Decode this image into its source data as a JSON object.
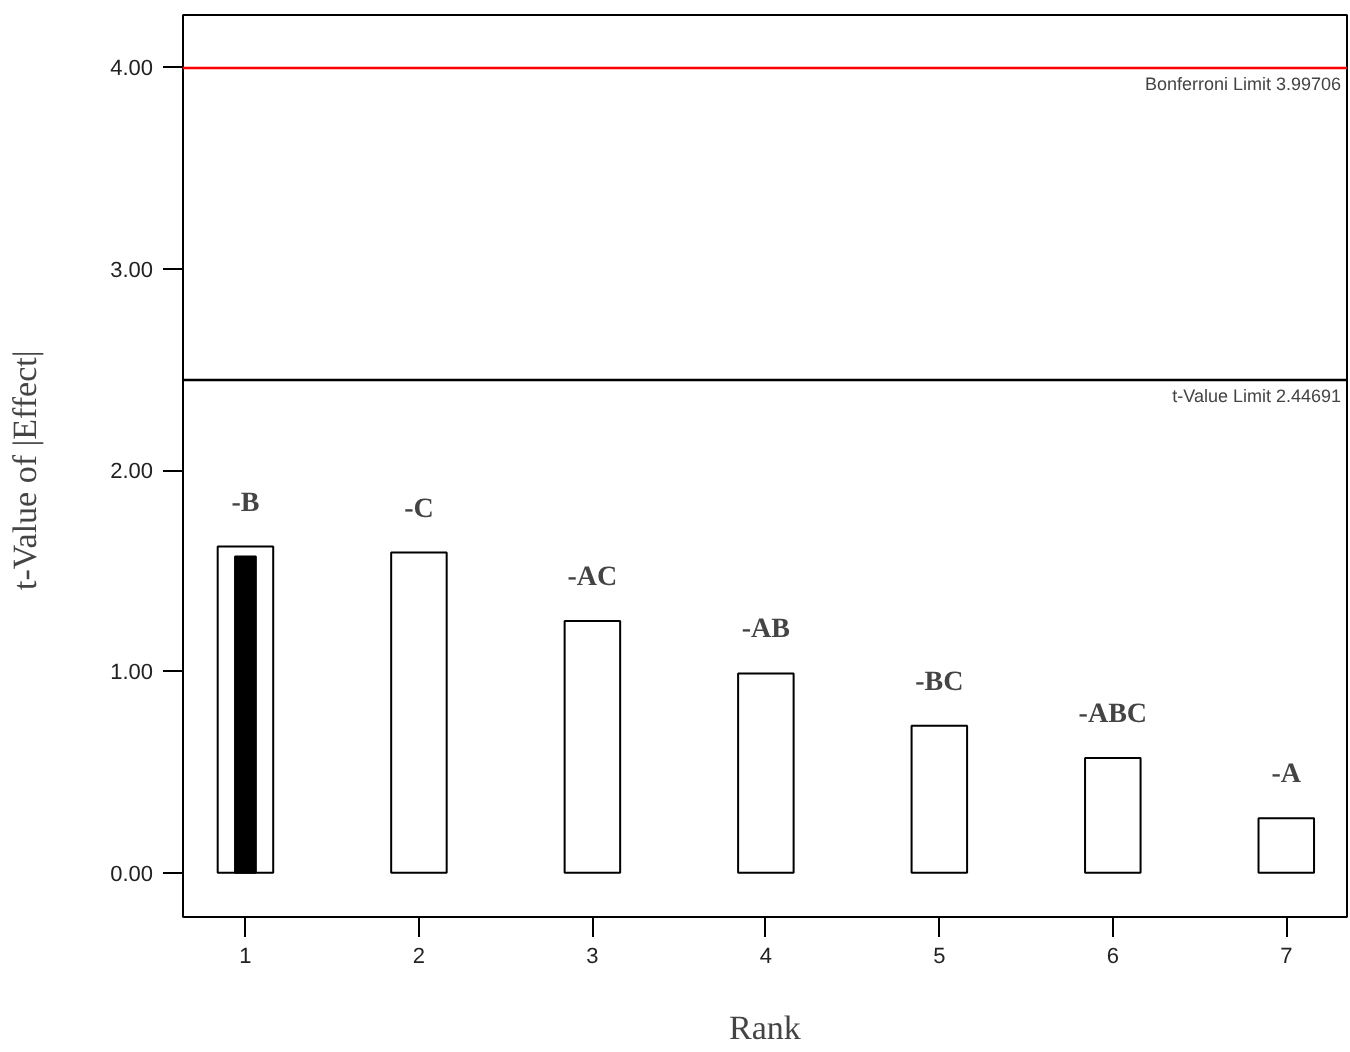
{
  "chart_data": {
    "type": "bar",
    "xlabel": "Rank",
    "ylabel": "t-Value of  |Effect|",
    "x": [
      1,
      2,
      3,
      4,
      5,
      6,
      7
    ],
    "series": [
      {
        "color": "#ffffff",
        "values": [
          1.62,
          1.59,
          1.25,
          0.99,
          0.73,
          0.57,
          0.27
        ],
        "value_labels": [
          "-B",
          "-C",
          "-AC",
          "-AB",
          "-BC",
          "-ABC",
          "-A"
        ]
      },
      {
        "color": "#000000",
        "values": [
          1.57,
          null,
          null,
          null,
          null,
          null,
          null
        ]
      }
    ],
    "xlim": [
      0.64,
      7.35
    ],
    "xticks": [
      1,
      2,
      3,
      4,
      5,
      6,
      7
    ],
    "ylim": [
      -0.22,
      4.26
    ],
    "yticks": [
      {
        "value": 0,
        "label": "0.00"
      },
      {
        "value": 1,
        "label": "1.00"
      },
      {
        "value": 2,
        "label": "2.00"
      },
      {
        "value": 3,
        "label": "3.00"
      },
      {
        "value": 4,
        "label": "4.00"
      }
    ],
    "ref_lines": [
      {
        "axis": "y",
        "value": 3.99706,
        "label": "Bonferroni Limit 3.99706",
        "color": "#ff0000"
      },
      {
        "axis": "y",
        "value": 2.44691,
        "label": "t-Value Limit 2.44691",
        "color": "#000000"
      }
    ],
    "grid": false
  }
}
